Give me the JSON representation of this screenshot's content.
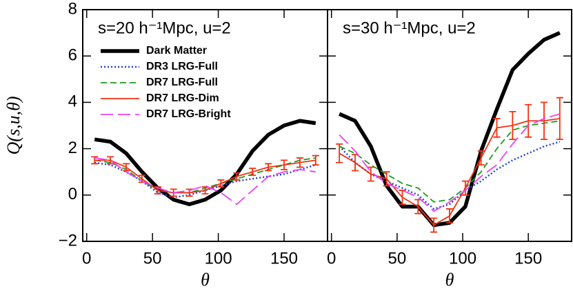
{
  "chart_data": [
    {
      "type": "line",
      "title": "s=20 h⁻¹Mpc, u=2",
      "x_label": "θ",
      "y_label": "Q(s,u,θ)",
      "x": [
        6,
        18,
        30,
        42,
        54,
        66,
        78,
        90,
        102,
        114,
        126,
        138,
        150,
        162,
        174
      ],
      "xlim": [
        -3,
        183
      ],
      "xticks": [
        0,
        50,
        100,
        150
      ],
      "ylim": [
        -2,
        8
      ],
      "yticks": [
        {
          "value": -2,
          "label": "−2"
        },
        0,
        2,
        4,
        6,
        8
      ],
      "legend": "upper left",
      "series": [
        {
          "name": "Dark Matter",
          "color": "#000000",
          "style": "thick",
          "values": [
            2.4,
            2.3,
            1.8,
            1.0,
            0.3,
            -0.2,
            -0.4,
            -0.2,
            0.2,
            0.9,
            1.9,
            2.6,
            3.0,
            3.2,
            3.1
          ]
        },
        {
          "name": "DR3 LRG-Full",
          "color": "#1f3fe0",
          "style": "dotted",
          "values": [
            1.4,
            1.3,
            1.0,
            0.6,
            0.1,
            -0.1,
            0.0,
            0.2,
            0.4,
            0.6,
            0.7,
            0.8,
            0.9,
            1.1,
            1.3
          ]
        },
        {
          "name": "DR7 LRG-Full",
          "color": "#1a9a1a",
          "style": "dashed",
          "values": [
            1.5,
            1.4,
            1.1,
            0.6,
            0.2,
            0.1,
            0.1,
            0.3,
            0.5,
            0.7,
            0.9,
            1.1,
            1.3,
            1.5,
            1.6
          ]
        },
        {
          "name": "DR7 LRG-Dim",
          "color": "#f03010",
          "style": "solid",
          "values": [
            1.5,
            1.5,
            1.2,
            0.7,
            0.2,
            0.1,
            0.1,
            0.2,
            0.5,
            0.8,
            1.0,
            1.2,
            1.3,
            1.4,
            1.5
          ],
          "errors": [
            0.15,
            0.15,
            0.15,
            0.15,
            0.15,
            0.15,
            0.15,
            0.15,
            0.15,
            0.15,
            0.15,
            0.15,
            0.2,
            0.2,
            0.2
          ]
        },
        {
          "name": "DR7 LRG-Bright",
          "color": "#f040f0",
          "style": "longdash",
          "values": [
            1.6,
            1.5,
            1.0,
            0.6,
            0.3,
            0.1,
            0.2,
            0.4,
            0.1,
            -0.4,
            0.2,
            0.8,
            1.0,
            1.1,
            1.0
          ]
        }
      ]
    },
    {
      "type": "line",
      "title": "s=30 h⁻¹Mpc, u=2",
      "x_label": "θ",
      "x": [
        6,
        18,
        30,
        42,
        54,
        66,
        78,
        90,
        102,
        114,
        126,
        138,
        150,
        162,
        174
      ],
      "xlim": [
        -3,
        183
      ],
      "xticks": [
        0,
        50,
        100,
        150
      ],
      "ylim": [
        -2,
        8
      ],
      "yticks": [
        -2,
        0,
        2,
        4,
        6,
        8
      ],
      "series": [
        {
          "color": "#000000",
          "style": "thick",
          "values": [
            3.5,
            3.2,
            2.1,
            0.4,
            -0.5,
            -0.5,
            -1.3,
            -1.2,
            -0.5,
            1.9,
            3.7,
            5.4,
            6.1,
            6.7,
            7.0
          ]
        },
        {
          "color": "#1f3fe0",
          "style": "dotted",
          "values": [
            2.1,
            1.4,
            0.9,
            0.6,
            0.3,
            0.0,
            -0.6,
            -0.4,
            0.2,
            0.6,
            1.1,
            1.5,
            1.8,
            2.1,
            2.3
          ]
        },
        {
          "color": "#1a9a1a",
          "style": "dashed",
          "values": [
            2.1,
            1.8,
            1.3,
            0.9,
            0.5,
            0.3,
            -0.3,
            -0.2,
            0.3,
            1.0,
            2.0,
            2.8,
            3.0,
            3.1,
            3.2
          ]
        },
        {
          "color": "#f03010",
          "style": "solid",
          "values": [
            1.8,
            1.4,
            0.9,
            0.7,
            -0.1,
            -0.5,
            -1.3,
            -0.9,
            0.3,
            1.6,
            2.9,
            3.0,
            3.2,
            3.2,
            3.3
          ],
          "errors": [
            0.4,
            0.35,
            0.3,
            0.3,
            0.3,
            0.3,
            0.3,
            0.3,
            0.3,
            0.3,
            0.4,
            0.6,
            0.7,
            0.8,
            0.9
          ]
        },
        {
          "color": "#f040f0",
          "style": "longdash",
          "values": [
            2.6,
            1.9,
            1.0,
            0.5,
            0.2,
            -0.1,
            -0.7,
            -0.3,
            0.2,
            0.8,
            1.3,
            2.2,
            3.0,
            3.3,
            3.5
          ]
        }
      ]
    }
  ]
}
